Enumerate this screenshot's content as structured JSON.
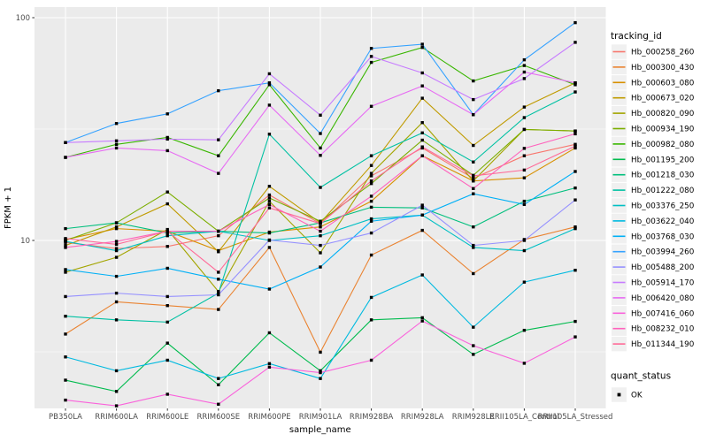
{
  "chart_data": {
    "type": "line",
    "title": "",
    "xlabel": "sample_name",
    "ylabel": "FPKM + 1",
    "y_scale": "log10",
    "y_major_ticks": [
      10,
      100
    ],
    "y_minor_ticks": [
      3.162,
      31.62
    ],
    "ylim": [
      1.76,
      111.6
    ],
    "grid": "on",
    "panel_bg": "#ebebeb",
    "grid_color": "#ffffff",
    "tick_label_color": "#4d4d4d",
    "marker": "black-square",
    "legend_position": "right",
    "legend_title": "tracking_id",
    "legend2_title": "quant_status",
    "legend2_items": [
      {
        "label": "OK",
        "marker": "black-square"
      }
    ],
    "categories": [
      "PB350LA",
      "RRIM600LA",
      "RRIM600LE",
      "RRIM600SE",
      "RRIM600PE",
      "RRIM901LA",
      "RRIM928BA",
      "RRIM928LA",
      "RRIM928LE",
      "RRII105LA_Control",
      "RRII105LA_Stressed"
    ],
    "series": [
      {
        "name": "Hb_000258_260",
        "color": "#F8766D",
        "values": [
          9.8,
          9.2,
          9.4,
          10.5,
          16,
          11.9,
          19.5,
          26,
          19,
          24,
          27
        ]
      },
      {
        "name": "Hb_000300_430",
        "color": "#EA8331",
        "values": [
          3.8,
          5.3,
          5.1,
          4.9,
          9.3,
          3.15,
          8.6,
          11.1,
          7.1,
          10.1,
          11.5
        ]
      },
      {
        "name": "Hb_000603_080",
        "color": "#D89000",
        "values": [
          10.1,
          11.3,
          11.0,
          9.0,
          10.9,
          11.5,
          15,
          24,
          18.5,
          19.1,
          26
        ]
      },
      {
        "name": "Hb_000673_020",
        "color": "#C09B00",
        "values": [
          9.5,
          11.5,
          14.6,
          8.9,
          17.5,
          12.0,
          21.7,
          43.5,
          26.7,
          39.7,
          51
        ]
      },
      {
        "name": "Hb_000820_090",
        "color": "#A3A500",
        "values": [
          7.2,
          8.4,
          11.2,
          5.9,
          15,
          8.8,
          20,
          33.8,
          18.5,
          31.5,
          31
        ]
      },
      {
        "name": "Hb_000934_190",
        "color": "#7CAE00",
        "values": [
          10.0,
          12.0,
          16.5,
          11.0,
          15.5,
          12.2,
          18,
          28.2,
          19.6,
          31.5,
          31
        ]
      },
      {
        "name": "Hb_000982_080",
        "color": "#39B600",
        "values": [
          23.6,
          27,
          29,
          24,
          50,
          26,
          63,
          73.5,
          52,
          61,
          50
        ]
      },
      {
        "name": "Hb_001195_200",
        "color": "#00BB4E",
        "values": [
          2.36,
          2.1,
          3.46,
          2.25,
          3.85,
          2.6,
          4.4,
          4.5,
          3.08,
          3.95,
          4.33
        ]
      },
      {
        "name": "Hb_001218_030",
        "color": "#00BF7D",
        "values": [
          11.3,
          12.0,
          10.8,
          11.0,
          10.8,
          12.0,
          14.1,
          14.0,
          11.5,
          15.0,
          17.2
        ]
      },
      {
        "name": "Hb_001222_080",
        "color": "#00C1A3",
        "values": [
          4.57,
          4.4,
          4.3,
          5.8,
          30,
          17.3,
          24,
          30.4,
          22.5,
          35.6,
          46.4
        ]
      },
      {
        "name": "Hb_003376_250",
        "color": "#00BFC4",
        "values": [
          9.9,
          9.0,
          10.5,
          11.0,
          10.0,
          10.5,
          12.5,
          13.0,
          9.3,
          9.0,
          11.3
        ]
      },
      {
        "name": "Hb_003622_040",
        "color": "#00BAE0",
        "values": [
          3.0,
          2.6,
          2.9,
          2.4,
          2.8,
          2.4,
          5.55,
          7.0,
          4.08,
          6.5,
          7.35
        ]
      },
      {
        "name": "Hb_003768_030",
        "color": "#00B0F6",
        "values": [
          7.4,
          6.9,
          7.5,
          6.7,
          6.05,
          7.6,
          12.2,
          13.0,
          16.2,
          14.5,
          20.4
        ]
      },
      {
        "name": "Hb_003994_260",
        "color": "#35A2FF",
        "values": [
          27.5,
          33.5,
          37,
          47,
          51,
          30.2,
          72.8,
          76,
          36.7,
          64.7,
          95
        ]
      },
      {
        "name": "Hb_005488_200",
        "color": "#9590FF",
        "values": [
          5.6,
          5.8,
          5.6,
          5.7,
          10.05,
          9.5,
          10.8,
          14.4,
          9.5,
          10.0,
          15.2
        ]
      },
      {
        "name": "Hb_005914_170",
        "color": "#C77CFF",
        "values": [
          27.5,
          28,
          28.5,
          28.3,
          56,
          36.5,
          67,
          56.5,
          42.9,
          53.3,
          77.5
        ]
      },
      {
        "name": "Hb_006420_080",
        "color": "#E76BF3",
        "values": [
          23.6,
          26,
          25.3,
          20,
          40.5,
          24.1,
          40,
          49.4,
          36.7,
          57,
          51
        ]
      },
      {
        "name": "Hb_007416_060",
        "color": "#FA62DB",
        "values": [
          1.92,
          1.81,
          2.04,
          1.84,
          2.7,
          2.55,
          2.9,
          4.35,
          3.37,
          2.81,
          3.69
        ]
      },
      {
        "name": "Hb_008232_010",
        "color": "#FF62BC",
        "values": [
          9.3,
          9.9,
          11.0,
          11.0,
          14.5,
          11.0,
          15.8,
          24,
          17.1,
          25.9,
          30.1
        ]
      },
      {
        "name": "Hb_011344_190",
        "color": "#FF6A98",
        "values": [
          10.2,
          9.6,
          11.0,
          7.2,
          14,
          11.9,
          18.5,
          26.3,
          19.5,
          20.7,
          26.5
        ]
      }
    ]
  }
}
